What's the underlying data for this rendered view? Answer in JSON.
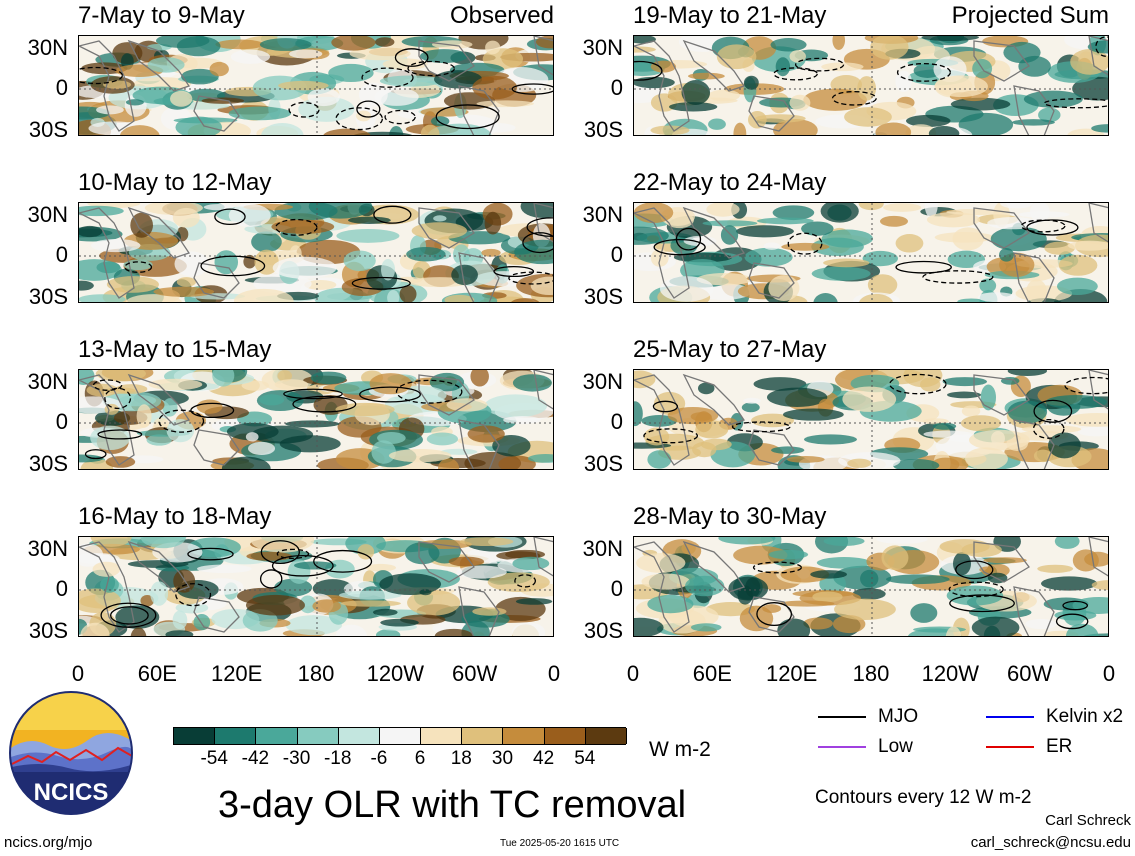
{
  "panels": [
    {
      "title": "7-May to 9-May",
      "tag": "Observed",
      "col": 0,
      "row": 0
    },
    {
      "title": "10-May to 12-May",
      "tag": "",
      "col": 0,
      "row": 1
    },
    {
      "title": "13-May to 15-May",
      "tag": "",
      "col": 0,
      "row": 2
    },
    {
      "title": "16-May to 18-May",
      "tag": "",
      "col": 0,
      "row": 3
    },
    {
      "title": "19-May to 21-May",
      "tag": "Projected Sum",
      "col": 1,
      "row": 0
    },
    {
      "title": "22-May to 24-May",
      "tag": "",
      "col": 1,
      "row": 1
    },
    {
      "title": "25-May to 27-May",
      "tag": "",
      "col": 1,
      "row": 2
    },
    {
      "title": "28-May to 30-May",
      "tag": "",
      "col": 1,
      "row": 3
    }
  ],
  "lat_labels": [
    "30N",
    "0",
    "30S"
  ],
  "lon_labels": [
    "0",
    "60E",
    "120E",
    "180",
    "120W",
    "60W",
    "0"
  ],
  "colorbar": {
    "colors": [
      "#083d36",
      "#1d7a6e",
      "#4aa89a",
      "#86cbbf",
      "#c3e6df",
      "#f5f5f5",
      "#f6e3bd",
      "#dfc07c",
      "#c58c3c",
      "#9a5e1c",
      "#5c3a10"
    ],
    "ticks": [
      "-54",
      "-42",
      "-30",
      "-18",
      "-6",
      "6",
      "18",
      "30",
      "42",
      "54"
    ],
    "units": "W m-2"
  },
  "legend": [
    {
      "label": "MJO",
      "color": "#000000"
    },
    {
      "label": "Kelvin x2",
      "color": "#0000ee"
    },
    {
      "label": "Low",
      "color": "#a040e0"
    },
    {
      "label": "ER",
      "color": "#e00000"
    }
  ],
  "contour_note": "Contours every 12 W m-2",
  "main_title": "3-day OLR with TC removal",
  "logo_text": "NCICS",
  "site": "ncics.org/mjo",
  "timestamp": "Tue 2025-05-20 1615 UTC",
  "author": "Carl Schreck",
  "email": "carl_schreck@ncsu.edu"
}
